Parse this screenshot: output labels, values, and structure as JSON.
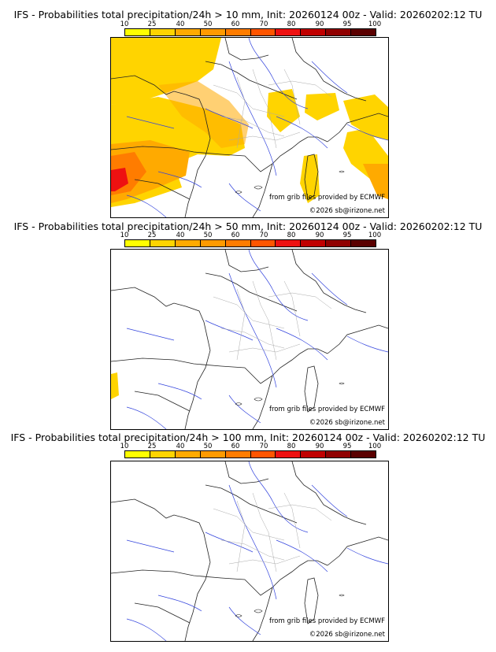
{
  "scale": {
    "labels": [
      "10",
      "25",
      "40",
      "50",
      "60",
      "70",
      "80",
      "90",
      "95",
      "100"
    ],
    "colors": [
      "#ffff00",
      "#ffd400",
      "#ffaa00",
      "#ff9a00",
      "#ff7c00",
      "#ff5500",
      "#ee1111",
      "#c00000",
      "#900000",
      "#5a0000"
    ]
  },
  "panels": [
    {
      "title": "IFS - Probabilities total precipitation/24h > 10 mm, Init: 20260124 00z - Valid: 20260202:12 TU",
      "source": "from grib files provided by ECMWF",
      "copyright": "©2026 sb@irizone.net"
    },
    {
      "title": "IFS - Probabilities total precipitation/24h > 50 mm, Init: 20260124 00z - Valid: 20260202:12 TU",
      "source": "from grib files provided by ECMWF",
      "copyright": "©2026 sb@irizone.net"
    },
    {
      "title": "IFS - Probabilities total precipitation/24h > 100 mm, Init: 20260124 00z - Valid: 20260202:12 TU",
      "source": "from grib files provided by ECMWF",
      "copyright": "©2026 sb@irizone.net"
    }
  ]
}
